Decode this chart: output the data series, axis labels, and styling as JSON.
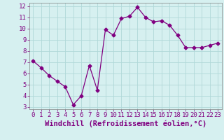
{
  "x": [
    0,
    1,
    2,
    3,
    4,
    5,
    6,
    7,
    8,
    9,
    10,
    11,
    12,
    13,
    14,
    15,
    16,
    17,
    18,
    19,
    20,
    21,
    22,
    23
  ],
  "y": [
    7.1,
    6.5,
    5.8,
    5.3,
    4.8,
    3.2,
    4.0,
    6.7,
    4.5,
    9.9,
    9.4,
    10.9,
    11.1,
    11.9,
    11.0,
    10.6,
    10.7,
    10.3,
    9.4,
    8.3,
    8.3,
    8.3,
    8.5,
    8.7
  ],
  "xlim": [
    -0.5,
    23.5
  ],
  "ylim": [
    2.8,
    12.3
  ],
  "yticks": [
    3,
    4,
    5,
    6,
    7,
    8,
    9,
    10,
    11,
    12
  ],
  "xticks": [
    0,
    1,
    2,
    3,
    4,
    5,
    6,
    7,
    8,
    9,
    10,
    11,
    12,
    13,
    14,
    15,
    16,
    17,
    18,
    19,
    20,
    21,
    22,
    23
  ],
  "xlabel": "Windchill (Refroidissement éolien,°C)",
  "line_color": "#800080",
  "marker": "D",
  "marker_size": 2.5,
  "line_width": 0.9,
  "bg_color": "#d6f0f0",
  "grid_color": "#b0d8d8",
  "tick_label_fontsize": 6.5,
  "xlabel_fontsize": 7.5
}
